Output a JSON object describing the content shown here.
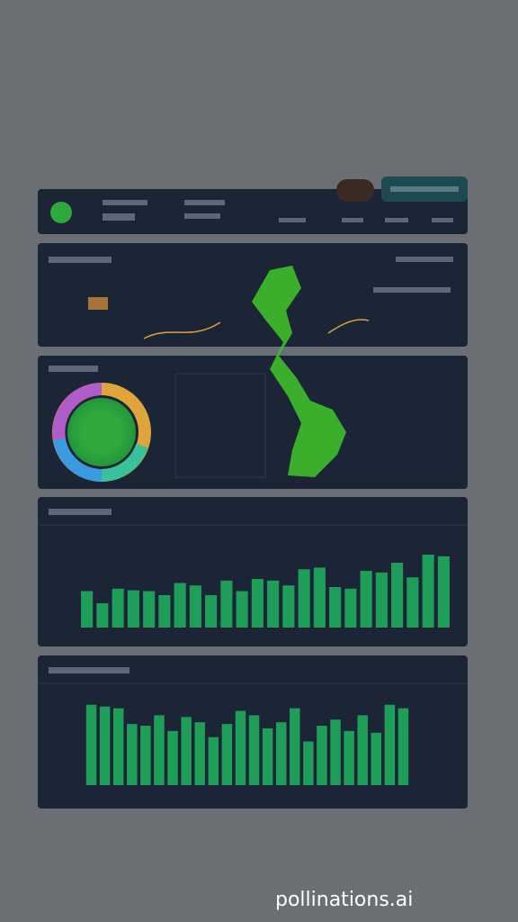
{
  "footer": {
    "watermark": "pollinations.ai"
  },
  "chart_data": [
    {
      "type": "bar",
      "values": [
        45,
        30,
        48,
        46,
        45,
        40,
        55,
        52,
        40,
        58,
        45,
        60,
        58,
        52,
        72,
        74,
        50,
        48,
        70,
        68,
        80,
        62,
        90,
        88
      ],
      "ylim": [
        0,
        100
      ],
      "color": "#1f9e5a"
    },
    {
      "type": "bar",
      "values": [
        92,
        90,
        88,
        70,
        68,
        80,
        62,
        78,
        72,
        55,
        70,
        85,
        80,
        65,
        72,
        88,
        50,
        68,
        75,
        62,
        80,
        60,
        92,
        88
      ],
      "ylim": [
        0,
        100
      ],
      "color": "#1f9e5a"
    }
  ]
}
